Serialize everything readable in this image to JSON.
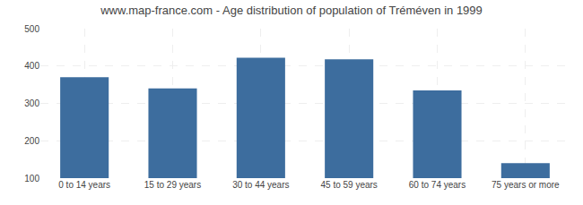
{
  "chart_data": {
    "type": "bar",
    "title": "www.map-france.com - Age distribution of population of Tréméven in 1999",
    "categories": [
      "0 to 14 years",
      "15 to 29 years",
      "30 to 44 years",
      "45 to 59 years",
      "60 to 74 years",
      "75 years or more"
    ],
    "values": [
      370,
      340,
      422,
      418,
      335,
      140
    ],
    "color": "#3d6d9e",
    "ylim": [
      100,
      500
    ],
    "yticks": [
      100,
      200,
      300,
      400,
      500
    ],
    "grid": true
  }
}
